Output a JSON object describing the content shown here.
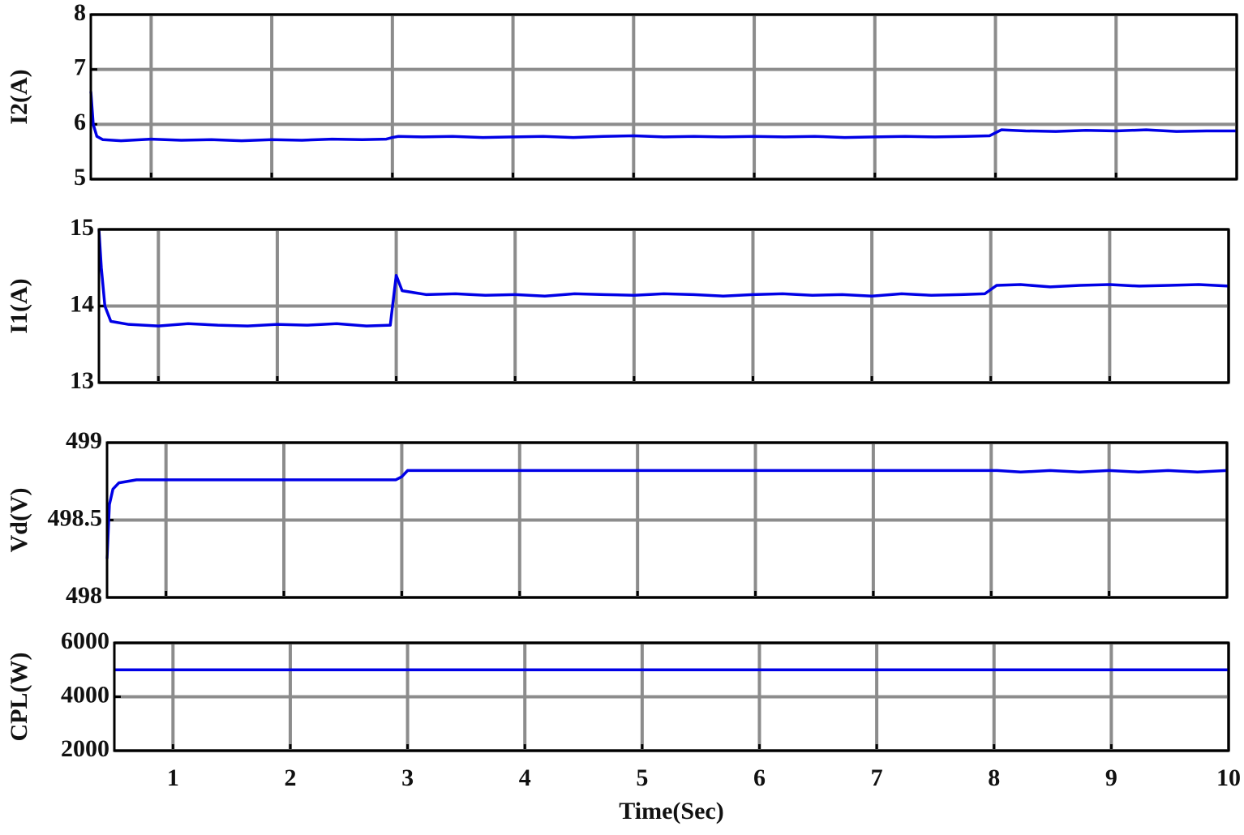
{
  "chart_data": [
    {
      "type": "line",
      "ylabel": "I2(A)",
      "color": "#0000e6",
      "grid": true,
      "x": [
        0.5,
        0.52,
        0.55,
        0.6,
        0.75,
        1,
        1.25,
        1.5,
        1.75,
        2,
        2.25,
        2.5,
        2.75,
        2.95,
        3,
        3.05,
        3.25,
        3.5,
        3.75,
        4,
        4.25,
        4.5,
        4.75,
        5,
        5.25,
        5.5,
        5.75,
        6,
        6.25,
        6.5,
        6.75,
        7,
        7.25,
        7.5,
        7.75,
        7.95,
        8.05,
        8.25,
        8.5,
        8.75,
        9,
        9.25,
        9.5,
        9.75,
        10
      ],
      "values": [
        6.6,
        6.0,
        5.78,
        5.72,
        5.7,
        5.73,
        5.71,
        5.72,
        5.7,
        5.72,
        5.71,
        5.73,
        5.72,
        5.73,
        5.76,
        5.78,
        5.77,
        5.78,
        5.76,
        5.77,
        5.78,
        5.76,
        5.78,
        5.79,
        5.77,
        5.78,
        5.77,
        5.78,
        5.77,
        5.78,
        5.76,
        5.77,
        5.78,
        5.77,
        5.78,
        5.79,
        5.9,
        5.88,
        5.87,
        5.89,
        5.88,
        5.9,
        5.87,
        5.88,
        5.88
      ],
      "xlim": [
        0.5,
        10
      ],
      "xticks": [
        1,
        2,
        3,
        4,
        5,
        6,
        7,
        8,
        9,
        10
      ],
      "ylim": [
        5,
        8
      ],
      "yticks": [
        5,
        6,
        7,
        8
      ]
    },
    {
      "type": "line",
      "ylabel": "I1(A)",
      "color": "#0000e6",
      "grid": true,
      "x": [
        0.5,
        0.52,
        0.55,
        0.6,
        0.75,
        1,
        1.25,
        1.5,
        1.75,
        2,
        2.25,
        2.5,
        2.75,
        2.95,
        3,
        3.05,
        3.25,
        3.5,
        3.75,
        4,
        4.25,
        4.5,
        4.75,
        5,
        5.25,
        5.5,
        5.75,
        6,
        6.25,
        6.5,
        6.75,
        7,
        7.25,
        7.5,
        7.75,
        7.95,
        8.05,
        8.25,
        8.5,
        8.75,
        9,
        9.25,
        9.5,
        9.75,
        10
      ],
      "values": [
        15,
        14.5,
        14.0,
        13.8,
        13.76,
        13.74,
        13.77,
        13.75,
        13.74,
        13.76,
        13.75,
        13.77,
        13.74,
        13.75,
        14.4,
        14.2,
        14.15,
        14.16,
        14.14,
        14.15,
        14.13,
        14.16,
        14.15,
        14.14,
        14.16,
        14.15,
        14.13,
        14.15,
        14.16,
        14.14,
        14.15,
        14.13,
        14.16,
        14.14,
        14.15,
        14.16,
        14.27,
        14.28,
        14.25,
        14.27,
        14.28,
        14.26,
        14.27,
        14.28,
        14.26
      ],
      "xlim": [
        0.5,
        10
      ],
      "xticks": [
        1,
        2,
        3,
        4,
        5,
        6,
        7,
        8,
        9,
        10
      ],
      "ylim": [
        13,
        15
      ],
      "yticks": [
        13,
        14,
        15
      ]
    },
    {
      "type": "line",
      "ylabel": "Vd(V)",
      "color": "#0000e6",
      "grid": true,
      "x": [
        0.5,
        0.52,
        0.55,
        0.6,
        0.75,
        1,
        1.25,
        1.5,
        1.75,
        2,
        2.25,
        2.5,
        2.75,
        2.95,
        3,
        3.05,
        3.25,
        3.5,
        3.75,
        4,
        4.25,
        4.5,
        4.75,
        5,
        5.25,
        5.5,
        5.75,
        6,
        6.25,
        6.5,
        6.75,
        7,
        7.25,
        7.5,
        7.75,
        7.95,
        8.05,
        8.25,
        8.5,
        8.75,
        9,
        9.25,
        9.5,
        9.75,
        10
      ],
      "values": [
        498.25,
        498.6,
        498.7,
        498.74,
        498.76,
        498.76,
        498.76,
        498.76,
        498.76,
        498.76,
        498.76,
        498.76,
        498.76,
        498.76,
        498.78,
        498.82,
        498.82,
        498.82,
        498.82,
        498.82,
        498.82,
        498.82,
        498.82,
        498.82,
        498.82,
        498.82,
        498.82,
        498.82,
        498.82,
        498.82,
        498.82,
        498.82,
        498.82,
        498.82,
        498.82,
        498.82,
        498.82,
        498.81,
        498.82,
        498.81,
        498.82,
        498.81,
        498.82,
        498.81,
        498.82
      ],
      "xlim": [
        0.5,
        10
      ],
      "xticks": [
        1,
        2,
        3,
        4,
        5,
        6,
        7,
        8,
        9,
        10
      ],
      "ylim": [
        498,
        499
      ],
      "yticks": [
        498,
        498.5,
        499
      ]
    },
    {
      "type": "line",
      "ylabel": "CPL(W)",
      "xlabel": "Time(Sec)",
      "color": "#0000e6",
      "grid": true,
      "x": [
        0.5,
        10
      ],
      "values": [
        5000,
        5000
      ],
      "xlim": [
        0.5,
        10
      ],
      "xticks": [
        1,
        2,
        3,
        4,
        5,
        6,
        7,
        8,
        9,
        10
      ],
      "ylim": [
        2000,
        6000
      ],
      "yticks": [
        2000,
        4000,
        6000
      ]
    }
  ]
}
